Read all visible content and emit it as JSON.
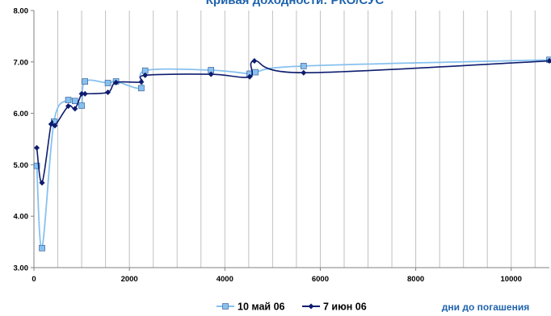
{
  "chart_data": {
    "type": "line",
    "title": "Кривая доходности: РКО/СУС",
    "xlabel": "дни до погашения",
    "ylabel": "",
    "xlim": [
      0,
      10800
    ],
    "ylim": [
      3.0,
      8.0
    ],
    "x_ticks": [
      0,
      2000,
      4000,
      6000,
      8000,
      10000
    ],
    "x_tick_labels": [
      "0",
      "2000",
      "4000",
      "6000",
      "8000",
      "10000"
    ],
    "y_ticks": [
      3.0,
      4.0,
      5.0,
      6.0,
      7.0,
      8.0
    ],
    "y_tick_labels": [
      "3.00",
      "4.00",
      "5.00",
      "6.00",
      "7.00",
      "8.00"
    ],
    "grid": "vertical",
    "legend_position": "bottom",
    "series": [
      {
        "name": "10 май 06",
        "color": "#87c1ef",
        "marker": "square",
        "x": [
          60,
          170,
          420,
          720,
          860,
          1000,
          1070,
          1550,
          1720,
          2250,
          2330,
          3710,
          4520,
          4640,
          5650,
          10800
        ],
        "y": [
          4.98,
          3.38,
          5.84,
          6.26,
          6.24,
          6.15,
          6.62,
          6.59,
          6.62,
          6.49,
          6.83,
          6.84,
          6.77,
          6.8,
          6.92,
          7.04
        ]
      },
      {
        "name": "7 июн 06",
        "color": "#0d1c6e",
        "marker": "diamond",
        "x": [
          60,
          170,
          360,
          440,
          720,
          860,
          1000,
          1070,
          1550,
          1720,
          2250,
          2330,
          3710,
          4520,
          4620,
          5650,
          10800
        ],
        "y": [
          5.33,
          4.65,
          5.79,
          5.76,
          6.14,
          6.09,
          6.38,
          6.38,
          6.41,
          6.6,
          6.61,
          6.74,
          6.76,
          6.71,
          7.02,
          6.79,
          7.02
        ]
      }
    ]
  }
}
